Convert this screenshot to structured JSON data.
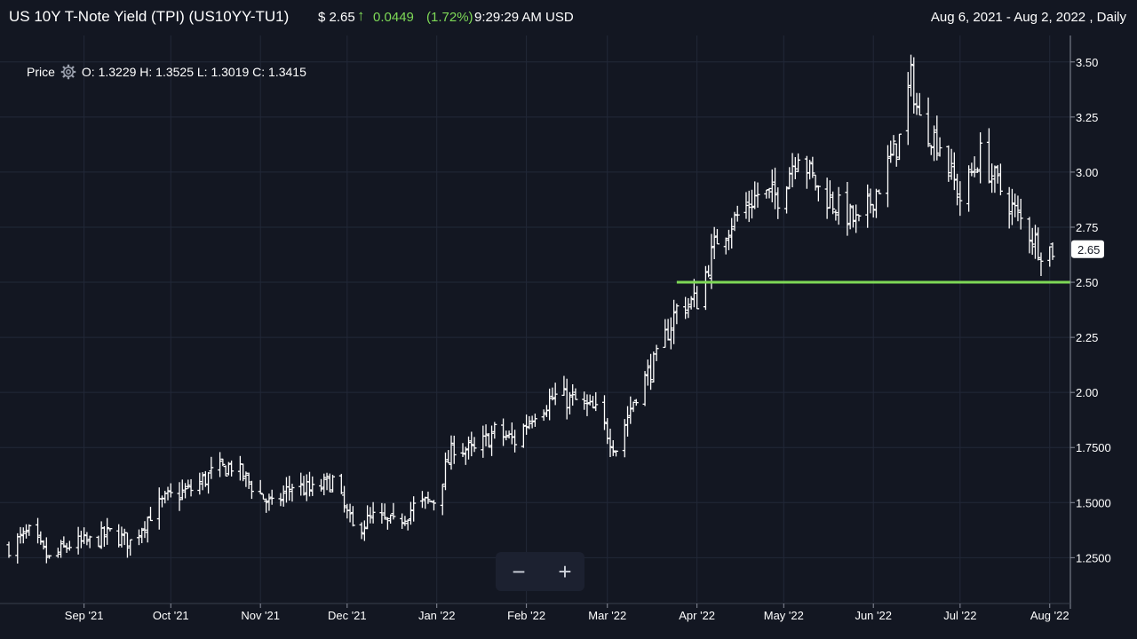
{
  "header": {
    "title": "US 10Y T-Note Yield (TPI)  (US10YY-TU1)",
    "price": "$ 2.65",
    "change_arrow": "↑",
    "change": "0.0449",
    "change_pct": "(1.72%)",
    "time": "9:29:29 AM USD",
    "range": "Aug 6, 2021 - Aug 2, 2022 , Daily"
  },
  "legend": {
    "label": "Price",
    "ohlc": "O: 1.3229  H: 1.3525  L: 1.3019  C: 1.3415",
    "icon": "gear-icon"
  },
  "zoom": {
    "minus": "−",
    "plus": "+"
  },
  "colors": {
    "background": "#131722",
    "bars": "#ffffff",
    "support_line": "#7ed957",
    "grid": "#222838"
  },
  "chart_data": {
    "type": "ohlc",
    "ylim": [
      1.05,
      3.62
    ],
    "y_ticks": [
      "3.50",
      "3.25",
      "3.00",
      "2.75",
      "2.50",
      "2.25",
      "2.00",
      "1.7500",
      "1.5000",
      "1.2500"
    ],
    "y_tick_values": [
      3.5,
      3.25,
      3.0,
      2.75,
      2.5,
      2.25,
      2.0,
      1.75,
      1.5,
      1.25
    ],
    "x_ticks": [
      "Sep '21",
      "Oct '21",
      "Nov '21",
      "Dec '21",
      "Jan '22",
      "Feb '22",
      "Mar '22",
      "Apr '22",
      "May '22",
      "Jun '22",
      "Jul '22",
      "Aug '22"
    ],
    "x_tick_dates": [
      "2021-09-01",
      "2021-10-01",
      "2021-11-01",
      "2021-12-01",
      "2022-01-01",
      "2022-02-01",
      "2022-03-01",
      "2022-04-01",
      "2022-05-01",
      "2022-06-01",
      "2022-07-01",
      "2022-08-01"
    ],
    "last_price_label": "2.65",
    "last_price": 2.65,
    "support_level": 2.5,
    "support_start": "2022-03-25",
    "support_end": "2022-08-02",
    "daily_closes": [
      [
        "2021-08-06",
        1.3
      ],
      [
        "2021-08-13",
        1.36
      ],
      [
        "2021-08-20",
        1.24
      ],
      [
        "2021-08-27",
        1.31
      ],
      [
        "2021-09-03",
        1.32
      ],
      [
        "2021-09-10",
        1.36
      ],
      [
        "2021-09-17",
        1.32
      ],
      [
        "2021-09-24",
        1.45
      ],
      [
        "2021-09-30",
        1.52
      ],
      [
        "2021-10-08",
        1.56
      ],
      [
        "2021-10-15",
        1.63
      ],
      [
        "2021-10-22",
        1.67
      ],
      [
        "2021-10-29",
        1.58
      ],
      [
        "2021-11-05",
        1.48
      ],
      [
        "2021-11-12",
        1.58
      ],
      [
        "2021-11-19",
        1.55
      ],
      [
        "2021-11-26",
        1.6
      ],
      [
        "2021-12-03",
        1.38
      ],
      [
        "2021-12-10",
        1.43
      ],
      [
        "2021-12-17",
        1.4
      ],
      [
        "2021-12-24",
        1.48
      ],
      [
        "2021-12-31",
        1.51
      ],
      [
        "2022-01-07",
        1.76
      ],
      [
        "2022-01-14",
        1.73
      ],
      [
        "2022-01-21",
        1.82
      ],
      [
        "2022-01-28",
        1.78
      ],
      [
        "2022-02-04",
        1.92
      ],
      [
        "2022-02-11",
        1.98
      ],
      [
        "2022-02-18",
        1.96
      ],
      [
        "2022-02-25",
        1.91
      ],
      [
        "2022-03-04",
        1.75
      ],
      [
        "2022-03-11",
        2.0
      ],
      [
        "2022-03-18",
        2.15
      ],
      [
        "2022-03-25",
        2.38
      ],
      [
        "2022-04-01",
        2.42
      ],
      [
        "2022-04-08",
        2.7
      ],
      [
        "2022-04-15",
        2.8
      ],
      [
        "2022-04-22",
        2.9
      ],
      [
        "2022-04-29",
        2.89
      ],
      [
        "2022-05-06",
        3.1
      ],
      [
        "2022-05-13",
        2.92
      ],
      [
        "2022-05-20",
        2.84
      ],
      [
        "2022-05-27",
        2.76
      ],
      [
        "2022-06-03",
        2.94
      ],
      [
        "2022-06-10",
        3.15
      ],
      [
        "2022-06-14",
        3.43
      ],
      [
        "2022-06-17",
        3.23
      ],
      [
        "2022-06-24",
        3.13
      ],
      [
        "2022-07-01",
        2.88
      ],
      [
        "2022-07-08",
        3.08
      ],
      [
        "2022-07-15",
        2.92
      ],
      [
        "2022-07-22",
        2.78
      ],
      [
        "2022-07-29",
        2.65
      ],
      [
        "2022-08-02",
        2.65
      ]
    ]
  }
}
